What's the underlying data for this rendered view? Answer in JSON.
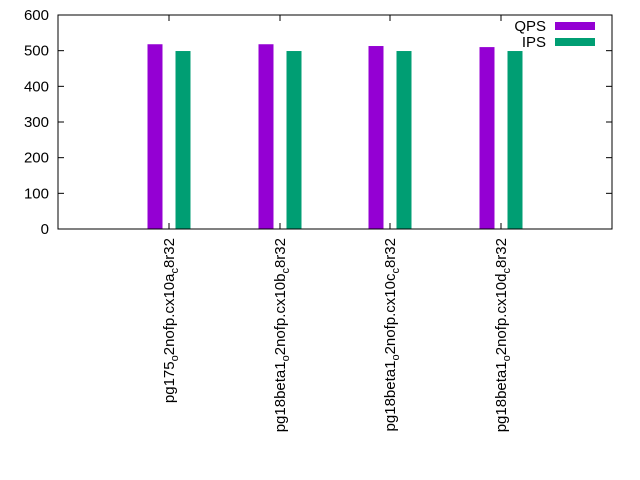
{
  "chart_data": {
    "type": "bar",
    "title": "",
    "xlabel": "",
    "ylabel": "",
    "ylim": [
      0,
      600
    ],
    "yticks": [
      0,
      100,
      200,
      300,
      400,
      500,
      600
    ],
    "grid": false,
    "legend_position": "top-right",
    "categories": [
      "pg175_o2nofp.cx10a_c8r32",
      "pg18beta1_o2nofp.cx10b_c8r32",
      "pg18beta1_o2nofp.cx10c_c8r32",
      "pg18beta1_o2nofp.cx10d_c8r32"
    ],
    "category_labels": [
      {
        "parts": [
          {
            "t": "pg175",
            "sub": false
          },
          {
            "t": "o",
            "sub": true
          },
          {
            "t": "2nofp.cx10a",
            "sub": false
          },
          {
            "t": "c",
            "sub": true
          },
          {
            "t": "8r32",
            "sub": false
          }
        ]
      },
      {
        "parts": [
          {
            "t": "pg18beta1",
            "sub": false
          },
          {
            "t": "o",
            "sub": true
          },
          {
            "t": "2nofp.cx10b",
            "sub": false
          },
          {
            "t": "c",
            "sub": true
          },
          {
            "t": "8r32",
            "sub": false
          }
        ]
      },
      {
        "parts": [
          {
            "t": "pg18beta1",
            "sub": false
          },
          {
            "t": "o",
            "sub": true
          },
          {
            "t": "2nofp.cx10c",
            "sub": false
          },
          {
            "t": "c",
            "sub": true
          },
          {
            "t": "8r32",
            "sub": false
          }
        ]
      },
      {
        "parts": [
          {
            "t": "pg18beta1",
            "sub": false
          },
          {
            "t": "o",
            "sub": true
          },
          {
            "t": "2nofp.cx10d",
            "sub": false
          },
          {
            "t": "c",
            "sub": true
          },
          {
            "t": "8r32",
            "sub": false
          }
        ]
      }
    ],
    "series": [
      {
        "name": "QPS",
        "color": "#9400d3",
        "values": [
          518,
          518,
          513,
          510
        ]
      },
      {
        "name": "IPS",
        "color": "#009e73",
        "values": [
          499,
          499,
          499,
          499
        ]
      }
    ]
  }
}
